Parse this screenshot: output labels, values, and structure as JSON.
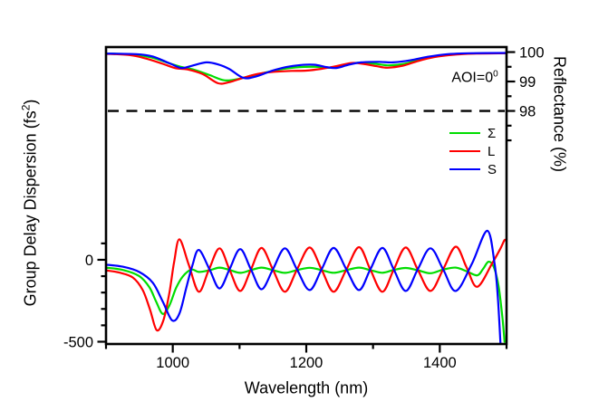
{
  "chart_data": {
    "type": "line",
    "title": "",
    "xlabel": "Wavelength (nm)",
    "ylabel_left": "Group Delay Dispersion (fs2)",
    "ylabel_right": "Reflectance (%)",
    "axes": {
      "x": {
        "label": "Wavelength (nm)",
        "range": [
          900,
          1500
        ],
        "major_ticks": [
          1000,
          1200,
          1400
        ],
        "minor_ticks": [
          900,
          1100,
          1300,
          1500
        ]
      },
      "y_left": {
        "label_prefix": "Group Delay Dispersion (fs",
        "label_sup": "2",
        "label_suffix": ")",
        "range": [
          -514,
          1298
        ],
        "major_ticks": [
          0,
          -500
        ],
        "minor_ticks": [
          100,
          -100,
          -200,
          -300,
          -400
        ]
      },
      "y_right": {
        "label": "Reflectance (%)",
        "range": [
          90.08,
          100.17
        ],
        "major_ticks": [
          100,
          99,
          98
        ],
        "minor_ticks": [
          99.5,
          98.5,
          97.5,
          97
        ]
      }
    },
    "reference_line": {
      "axis": "right",
      "value": 98,
      "style": "dashed",
      "color": "#000000"
    },
    "annotation": {
      "text": "AOI=0",
      "sup": "0"
    },
    "legend": {
      "items": [
        {
          "label": "Σ",
          "color": "#00dd00"
        },
        {
          "label": "L",
          "color": "#ff0000"
        },
        {
          "label": "S",
          "color": "#0000ff"
        }
      ]
    },
    "colors": {
      "sigma": "#00dd00",
      "L": "#ff0000",
      "S": "#0000ff",
      "axis": "#000000",
      "background": "#ffffff"
    },
    "series": [
      {
        "name": "Σ",
        "plot": "reflectance",
        "axis": "right",
        "color": "#00dd00",
        "points": [
          [
            900,
            99.95
          ],
          [
            940,
            99.92
          ],
          [
            968,
            99.82
          ],
          [
            992,
            99.64
          ],
          [
            1012,
            99.5
          ],
          [
            1032,
            99.4
          ],
          [
            1055,
            99.22
          ],
          [
            1077,
            99.04
          ],
          [
            1097,
            99.08
          ],
          [
            1118,
            99.2
          ],
          [
            1142,
            99.32
          ],
          [
            1166,
            99.43
          ],
          [
            1190,
            99.49
          ],
          [
            1214,
            99.5
          ],
          [
            1236,
            99.47
          ],
          [
            1258,
            99.58
          ],
          [
            1280,
            99.64
          ],
          [
            1303,
            99.6
          ],
          [
            1324,
            99.55
          ],
          [
            1347,
            99.6
          ],
          [
            1372,
            99.76
          ],
          [
            1400,
            99.88
          ],
          [
            1432,
            99.94
          ],
          [
            1465,
            99.96
          ],
          [
            1500,
            99.96
          ]
        ]
      },
      {
        "name": "L",
        "plot": "reflectance",
        "axis": "right",
        "color": "#ff0000",
        "points": [
          [
            900,
            99.94
          ],
          [
            935,
            99.9
          ],
          [
            960,
            99.78
          ],
          [
            985,
            99.6
          ],
          [
            1005,
            99.45
          ],
          [
            1022,
            99.41
          ],
          [
            1045,
            99.25
          ],
          [
            1068,
            98.94
          ],
          [
            1085,
            98.98
          ],
          [
            1105,
            99.12
          ],
          [
            1128,
            99.26
          ],
          [
            1152,
            99.33
          ],
          [
            1178,
            99.36
          ],
          [
            1200,
            99.37
          ],
          [
            1222,
            99.43
          ],
          [
            1245,
            99.52
          ],
          [
            1268,
            99.63
          ],
          [
            1285,
            99.6
          ],
          [
            1305,
            99.52
          ],
          [
            1322,
            99.47
          ],
          [
            1345,
            99.54
          ],
          [
            1368,
            99.7
          ],
          [
            1392,
            99.83
          ],
          [
            1420,
            99.91
          ],
          [
            1455,
            99.95
          ],
          [
            1500,
            99.96
          ]
        ]
      },
      {
        "name": "S",
        "plot": "reflectance",
        "axis": "right",
        "color": "#0000ff",
        "points": [
          [
            900,
            99.95
          ],
          [
            945,
            99.93
          ],
          [
            970,
            99.85
          ],
          [
            995,
            99.62
          ],
          [
            1013,
            99.46
          ],
          [
            1028,
            99.53
          ],
          [
            1050,
            99.65
          ],
          [
            1068,
            99.58
          ],
          [
            1085,
            99.42
          ],
          [
            1106,
            99.12
          ],
          [
            1126,
            99.18
          ],
          [
            1148,
            99.36
          ],
          [
            1170,
            99.49
          ],
          [
            1192,
            99.56
          ],
          [
            1212,
            99.57
          ],
          [
            1230,
            99.49
          ],
          [
            1245,
            99.46
          ],
          [
            1262,
            99.56
          ],
          [
            1282,
            99.65
          ],
          [
            1308,
            99.67
          ],
          [
            1330,
            99.65
          ],
          [
            1356,
            99.72
          ],
          [
            1382,
            99.84
          ],
          [
            1412,
            99.93
          ],
          [
            1445,
            99.96
          ],
          [
            1500,
            99.97
          ]
        ]
      },
      {
        "name": "Σ",
        "plot": "gdd",
        "axis": "left",
        "color": "#00dd00",
        "points": [
          [
            900,
            -48
          ],
          [
            925,
            -62
          ],
          [
            950,
            -100
          ],
          [
            965,
            -168
          ],
          [
            975,
            -255
          ],
          [
            985,
            -330
          ],
          [
            995,
            -278
          ],
          [
            1005,
            -172
          ],
          [
            1015,
            -102
          ],
          [
            1028,
            -60
          ],
          [
            1039,
            -74
          ],
          [
            1055,
            -64
          ],
          [
            1070,
            -48
          ],
          [
            1085,
            -62
          ],
          [
            1101,
            -80
          ],
          [
            1117,
            -63
          ],
          [
            1133,
            -48
          ],
          [
            1150,
            -63
          ],
          [
            1168,
            -80
          ],
          [
            1186,
            -63
          ],
          [
            1205,
            -49
          ],
          [
            1223,
            -63
          ],
          [
            1241,
            -79
          ],
          [
            1260,
            -63
          ],
          [
            1279,
            -48
          ],
          [
            1296,
            -63
          ],
          [
            1314,
            -79
          ],
          [
            1331,
            -62
          ],
          [
            1349,
            -50
          ],
          [
            1367,
            -64
          ],
          [
            1386,
            -82
          ],
          [
            1405,
            -60
          ],
          [
            1424,
            -48
          ],
          [
            1440,
            -70
          ],
          [
            1456,
            -95
          ],
          [
            1465,
            -55
          ],
          [
            1473,
            -12
          ],
          [
            1481,
            -45
          ],
          [
            1488,
            -160
          ],
          [
            1494,
            -360
          ],
          [
            1497,
            -500
          ]
        ]
      },
      {
        "name": "L",
        "plot": "gdd",
        "axis": "left",
        "color": "#ff0000",
        "points": [
          [
            900,
            -65
          ],
          [
            920,
            -78
          ],
          [
            940,
            -108
          ],
          [
            955,
            -185
          ],
          [
            966,
            -305
          ],
          [
            976,
            -430
          ],
          [
            986,
            -368
          ],
          [
            995,
            -200
          ],
          [
            1002,
            -15
          ],
          [
            1010,
            125
          ],
          [
            1024,
            -30
          ],
          [
            1039,
            -195
          ],
          [
            1054,
            -62
          ],
          [
            1070,
            70
          ],
          [
            1085,
            -60
          ],
          [
            1101,
            -190
          ],
          [
            1117,
            -60
          ],
          [
            1133,
            72
          ],
          [
            1150,
            -60
          ],
          [
            1168,
            -195
          ],
          [
            1186,
            -60
          ],
          [
            1205,
            75
          ],
          [
            1223,
            -60
          ],
          [
            1241,
            -195
          ],
          [
            1260,
            -60
          ],
          [
            1279,
            77
          ],
          [
            1296,
            -60
          ],
          [
            1314,
            -195
          ],
          [
            1331,
            -60
          ],
          [
            1349,
            75
          ],
          [
            1367,
            -60
          ],
          [
            1386,
            -190
          ],
          [
            1405,
            -58
          ],
          [
            1424,
            80
          ],
          [
            1440,
            -45
          ],
          [
            1456,
            -165
          ],
          [
            1478,
            -25
          ],
          [
            1491,
            70
          ],
          [
            1497,
            120
          ],
          [
            1500,
            112
          ]
        ]
      },
      {
        "name": "S",
        "plot": "gdd",
        "axis": "left",
        "color": "#0000ff",
        "points": [
          [
            900,
            -30
          ],
          [
            925,
            -42
          ],
          [
            950,
            -75
          ],
          [
            970,
            -140
          ],
          [
            985,
            -255
          ],
          [
            999,
            -370
          ],
          [
            1010,
            -328
          ],
          [
            1020,
            -175
          ],
          [
            1029,
            -40
          ],
          [
            1039,
            60
          ],
          [
            1055,
            -58
          ],
          [
            1070,
            -175
          ],
          [
            1085,
            -58
          ],
          [
            1101,
            65
          ],
          [
            1117,
            -58
          ],
          [
            1133,
            -180
          ],
          [
            1150,
            -58
          ],
          [
            1168,
            70
          ],
          [
            1186,
            -58
          ],
          [
            1205,
            -185
          ],
          [
            1223,
            -58
          ],
          [
            1241,
            72
          ],
          [
            1260,
            -58
          ],
          [
            1279,
            -185
          ],
          [
            1296,
            -58
          ],
          [
            1314,
            72
          ],
          [
            1331,
            -58
          ],
          [
            1349,
            -190
          ],
          [
            1367,
            -58
          ],
          [
            1386,
            70
          ],
          [
            1405,
            -58
          ],
          [
            1424,
            -190
          ],
          [
            1448,
            -25
          ],
          [
            1471,
            177
          ],
          [
            1482,
            -20
          ],
          [
            1487,
            -230
          ],
          [
            1491,
            -520
          ]
        ]
      }
    ]
  }
}
